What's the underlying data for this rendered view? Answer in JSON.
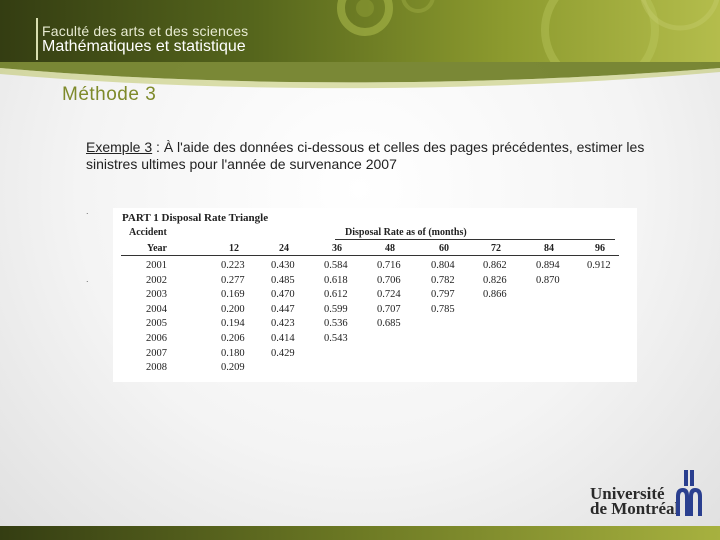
{
  "header": {
    "faculty": "Faculté des arts et des sciences",
    "department": "Mathématiques et statistique"
  },
  "section_title": "Méthode 3",
  "content": {
    "example_label": "Exemple 3",
    "example_text": " : À l'aide des données ci-dessous et celles des pages précédentes, estimer les sinistres ultimes pour l'année de survenance 2007"
  },
  "bullets": [
    ".",
    "."
  ],
  "table": {
    "title": "PART 1   Disposal Rate Triangle",
    "header_accident": "Accident",
    "header_year": "Year",
    "header_group": "Disposal Rate as of (months)",
    "columns": [
      "12",
      "24",
      "36",
      "48",
      "60",
      "72",
      "84",
      "96"
    ],
    "rows": [
      {
        "year": "2001",
        "values": [
          "0.223",
          "0.430",
          "0.584",
          "0.716",
          "0.804",
          "0.862",
          "0.894",
          "0.912"
        ]
      },
      {
        "year": "2002",
        "values": [
          "0.277",
          "0.485",
          "0.618",
          "0.706",
          "0.782",
          "0.826",
          "0.870"
        ]
      },
      {
        "year": "2003",
        "values": [
          "0.169",
          "0.470",
          "0.612",
          "0.724",
          "0.797",
          "0.866"
        ]
      },
      {
        "year": "2004",
        "values": [
          "0.200",
          "0.447",
          "0.599",
          "0.707",
          "0.785"
        ]
      },
      {
        "year": "2005",
        "values": [
          "0.194",
          "0.423",
          "0.536",
          "0.685"
        ]
      },
      {
        "year": "2006",
        "values": [
          "0.206",
          "0.414",
          "0.543"
        ]
      },
      {
        "year": "2007",
        "values": [
          "0.180",
          "0.429"
        ]
      },
      {
        "year": "2008",
        "values": [
          "0.209"
        ]
      }
    ]
  },
  "logo": {
    "line1": "Université",
    "line2": "de Montréal"
  }
}
